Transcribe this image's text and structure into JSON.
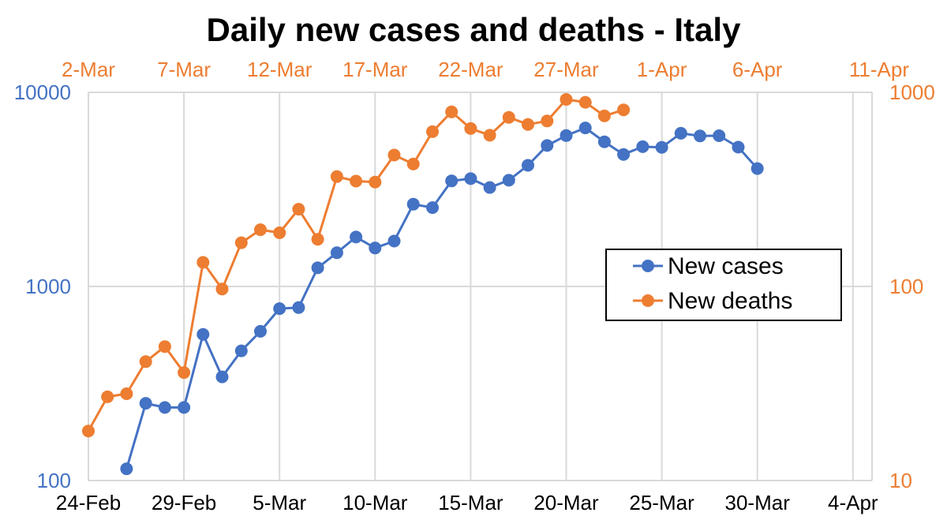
{
  "chart_data": {
    "type": "line",
    "title": "Daily new cases and deaths - Italy",
    "grid": true,
    "legend_position": "center-right",
    "legend": [
      "New cases",
      "New deaths"
    ],
    "colors": {
      "cases": "#4472C4",
      "deaths": "#ED7D31",
      "grid": "#D9D9D9"
    },
    "x_bottom": {
      "tick_labels": [
        "24-Feb",
        "29-Feb",
        "5-Mar",
        "10-Mar",
        "15-Mar",
        "20-Mar",
        "25-Mar",
        "30-Mar",
        "4-Apr"
      ],
      "range": [
        "24-Feb",
        "5-Apr"
      ]
    },
    "x_top": {
      "tick_labels": [
        "2-Mar",
        "7-Mar",
        "12-Mar",
        "17-Mar",
        "22-Mar",
        "27-Mar",
        "1-Apr",
        "6-Apr",
        "11-Apr"
      ],
      "range": [
        "2-Mar",
        "12-Apr"
      ]
    },
    "y_left": {
      "scale": "log",
      "ylim": [
        100,
        10000
      ],
      "tick_labels": [
        "100",
        "1000",
        "10000"
      ]
    },
    "y_right": {
      "scale": "log",
      "ylim": [
        10,
        1000
      ],
      "tick_labels": [
        "10",
        "100",
        "1000"
      ]
    },
    "series": [
      {
        "name": "New cases",
        "axis": "bottom-left",
        "x": [
          "26-Feb",
          "27-Feb",
          "28-Feb",
          "29-Feb",
          "1-Mar",
          "2-Mar",
          "3-Mar",
          "4-Mar",
          "5-Mar",
          "6-Mar",
          "7-Mar",
          "8-Mar",
          "9-Mar",
          "10-Mar",
          "11-Mar",
          "12-Mar",
          "13-Mar",
          "14-Mar",
          "15-Mar",
          "16-Mar",
          "17-Mar",
          "18-Mar",
          "19-Mar",
          "20-Mar",
          "21-Mar",
          "22-Mar",
          "23-Mar",
          "24-Mar",
          "25-Mar",
          "26-Mar",
          "27-Mar",
          "28-Mar",
          "29-Mar",
          "30-Mar"
        ],
        "values": [
          115,
          250,
          238,
          238,
          566,
          342,
          466,
          587,
          769,
          778,
          1247,
          1492,
          1797,
          1577,
          1713,
          2651,
          2547,
          3497,
          3590,
          3233,
          3526,
          4207,
          5322,
          5986,
          6557,
          5560,
          4789,
          5249,
          5210,
          6153,
          5959,
          5974,
          5217,
          4050
        ]
      },
      {
        "name": "New deaths",
        "axis": "top-right",
        "x": [
          "2-Mar",
          "3-Mar",
          "4-Mar",
          "5-Mar",
          "6-Mar",
          "7-Mar",
          "8-Mar",
          "9-Mar",
          "10-Mar",
          "11-Mar",
          "12-Mar",
          "13-Mar",
          "14-Mar",
          "15-Mar",
          "16-Mar",
          "17-Mar",
          "18-Mar",
          "19-Mar",
          "20-Mar",
          "21-Mar",
          "22-Mar",
          "23-Mar",
          "24-Mar",
          "25-Mar",
          "26-Mar",
          "27-Mar",
          "28-Mar",
          "29-Mar",
          "30-Mar"
        ],
        "values": [
          18,
          27,
          28,
          41,
          49,
          36,
          133,
          97,
          168,
          196,
          189,
          250,
          175,
          368,
          349,
          345,
          475,
          427,
          627,
          793,
          651,
          601,
          743,
          683,
          712,
          919,
          889,
          756,
          812
        ]
      }
    ]
  }
}
